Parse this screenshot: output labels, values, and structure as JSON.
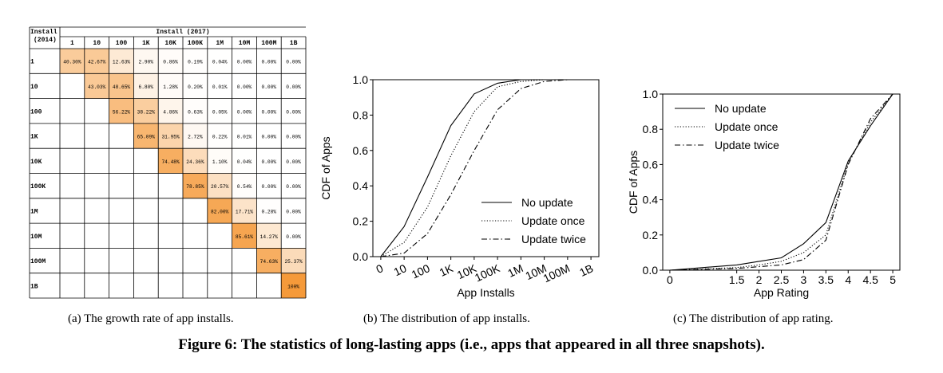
{
  "figure": {
    "title": "Figure 6: The statistics of long-lasting apps (i.e., apps that appeared in all three snapshots).",
    "captions": [
      "(a) The growth rate of app installs.",
      "(b) The distribution of app installs.",
      "(c) The distribution of app rating."
    ]
  },
  "chart_data": [
    {
      "type": "heatmap",
      "corner_label_line1": "Install",
      "corner_label_line2": "(2014)",
      "column_header": "Install (2017)",
      "columns": [
        "1",
        "10",
        "100",
        "1K",
        "10K",
        "100K",
        "1M",
        "10M",
        "100M",
        "1B"
      ],
      "rows": [
        "1",
        "10",
        "100",
        "1K",
        "10K",
        "100K",
        "1M",
        "10M",
        "100M",
        "1B"
      ],
      "cells": [
        [
          "40.30%",
          "42.67%",
          "12.63%",
          "2.90%",
          "0.86%",
          "0.19%",
          "0.04%",
          "0.00%",
          "0.00%",
          "0.00%"
        ],
        [
          "",
          "43.03%",
          "48.65%",
          "6.80%",
          "1.28%",
          "0.20%",
          "0.01%",
          "0.00%",
          "0.00%",
          "0.00%"
        ],
        [
          "",
          "",
          "56.22%",
          "38.22%",
          "4.86%",
          "0.63%",
          "0.05%",
          "0.00%",
          "0.00%",
          "0.00%"
        ],
        [
          "",
          "",
          "",
          "65.09%",
          "31.95%",
          "2.72%",
          "0.22%",
          "0.01%",
          "0.00%",
          "0.00%"
        ],
        [
          "",
          "",
          "",
          "",
          "74.48%",
          "24.36%",
          "1.10%",
          "0.04%",
          "0.00%",
          "0.00%"
        ],
        [
          "",
          "",
          "",
          "",
          "",
          "78.85%",
          "20.57%",
          "0.54%",
          "0.00%",
          "0.00%"
        ],
        [
          "",
          "",
          "",
          "",
          "",
          "",
          "82.00%",
          "17.71%",
          "0.28%",
          "0.00%"
        ],
        [
          "",
          "",
          "",
          "",
          "",
          "",
          "",
          "85.61%",
          "14.27%",
          "0.00%"
        ],
        [
          "",
          "",
          "",
          "",
          "",
          "",
          "",
          "",
          "74.63%",
          "25.37%"
        ],
        [
          "",
          "",
          "",
          "",
          "",
          "",
          "",
          "",
          "",
          "100%"
        ]
      ],
      "color_high": "#f59a3a",
      "color_low": "#ffffff"
    },
    {
      "type": "line",
      "xlabel": "App Installs",
      "ylabel": "CDF of Apps",
      "categories": [
        "0",
        "10",
        "100",
        "1K",
        "10K",
        "100K",
        "1M",
        "10M",
        "100M",
        "1B"
      ],
      "yticks": [
        "0.0",
        "0.2",
        "0.4",
        "0.6",
        "0.8",
        "1.0"
      ],
      "ylim": [
        0,
        1
      ],
      "legend_position": "bottom-right",
      "series": [
        {
          "name": "No update",
          "dash": "solid",
          "values": [
            0.0,
            0.17,
            0.45,
            0.74,
            0.92,
            0.98,
            1.0,
            1.0,
            1.0,
            1.0
          ]
        },
        {
          "name": "Update once",
          "dash": "dotted",
          "values": [
            0.0,
            0.08,
            0.28,
            0.57,
            0.82,
            0.96,
            0.99,
            1.0,
            1.0,
            1.0
          ]
        },
        {
          "name": "Update twice",
          "dash": "dashdot",
          "values": [
            0.0,
            0.02,
            0.13,
            0.35,
            0.6,
            0.83,
            0.95,
            0.99,
            1.0,
            1.0
          ]
        }
      ]
    },
    {
      "type": "line",
      "xlabel": "App Rating",
      "ylabel": "CDF of Apps",
      "xticks": [
        "0",
        "1.5",
        "2",
        "2.5",
        "3",
        "3.5",
        "4",
        "4.5",
        "5"
      ],
      "yticks": [
        "0.0",
        "0.2",
        "0.4",
        "0.6",
        "0.8",
        "1.0"
      ],
      "ylim": [
        0,
        1
      ],
      "legend_position": "top-left",
      "series": [
        {
          "name": "No update",
          "dash": "solid",
          "values": [
            0.0,
            0.03,
            0.05,
            0.07,
            0.15,
            0.27,
            0.62,
            0.82,
            1.0
          ]
        },
        {
          "name": "Update once",
          "dash": "dotted",
          "values": [
            0.0,
            0.015,
            0.03,
            0.05,
            0.1,
            0.2,
            0.61,
            0.84,
            1.0
          ]
        },
        {
          "name": "Update twice",
          "dash": "dashdot",
          "values": [
            0.0,
            0.01,
            0.02,
            0.03,
            0.06,
            0.17,
            0.6,
            0.86,
            1.0
          ]
        }
      ]
    }
  ]
}
